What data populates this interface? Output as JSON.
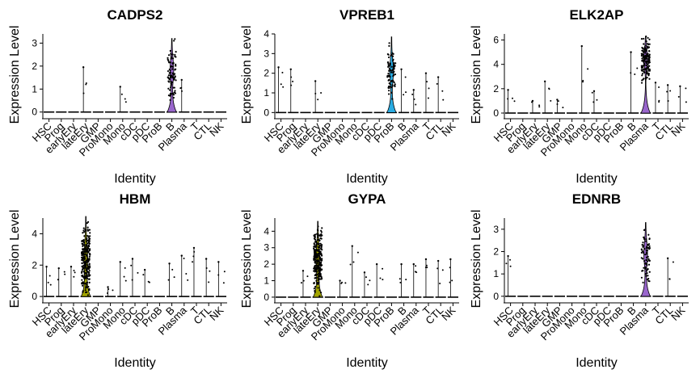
{
  "chart_data": [
    {
      "type": "violin",
      "title": "CADPS2",
      "xlabel": "Identity",
      "ylabel": "Expression Level",
      "ylim": [
        -0.15,
        3.4
      ],
      "yticks": [
        0,
        1,
        2,
        3
      ],
      "categories": [
        "HSC",
        "Prog",
        "earlyEry",
        "lateEry",
        "GMP",
        "ProMono",
        "Mono",
        "cDC",
        "pDC",
        "ProB",
        "B",
        "Plasma",
        "T",
        "CTL",
        "NK"
      ],
      "highlight": {
        "category": "B",
        "color": "#9966cc",
        "min": 0,
        "max": 3.2,
        "points": 90,
        "center": 1.8,
        "spread": 0.55
      },
      "outliers": [
        {
          "category": "lateEry",
          "value": 1.95
        },
        {
          "category": "Mono",
          "value": 1.1
        },
        {
          "category": "Plasma",
          "value": 1.4
        }
      ]
    },
    {
      "type": "violin",
      "title": "VPREB1",
      "xlabel": "Identity",
      "ylabel": "Expression Level",
      "ylim": [
        -0.15,
        4.0
      ],
      "yticks": [
        0,
        1,
        2,
        3,
        4
      ],
      "categories": [
        "HSC",
        "Prog",
        "earlyEry",
        "lateEry",
        "GMP",
        "ProMono",
        "Mono",
        "cDC",
        "pDC",
        "ProB",
        "B",
        "Plasma",
        "T",
        "CTL",
        "NK"
      ],
      "highlight": {
        "category": "ProB",
        "color": "#29abe2",
        "min": 0,
        "max": 3.85,
        "points": 80,
        "center": 2.1,
        "spread": 0.6
      },
      "outliers": [
        {
          "category": "HSC",
          "value": 2.3
        },
        {
          "category": "Prog",
          "value": 2.2
        },
        {
          "category": "lateEry",
          "value": 1.6
        },
        {
          "category": "B",
          "value": 2.2
        },
        {
          "category": "Plasma",
          "value": 1.15
        },
        {
          "category": "T",
          "value": 2.0
        },
        {
          "category": "CTL",
          "value": 1.8
        }
      ]
    },
    {
      "type": "violin",
      "title": "ELK2AP",
      "xlabel": "Identity",
      "ylabel": "Expression Level",
      "ylim": [
        -0.2,
        6.5
      ],
      "yticks": [
        0,
        2,
        4,
        6
      ],
      "categories": [
        "HSC",
        "Prog",
        "earlyEry",
        "lateEry",
        "GMP",
        "ProMono",
        "Mono",
        "cDC",
        "pDC",
        "ProB",
        "B",
        "Plasma",
        "T",
        "CTL",
        "NK"
      ],
      "highlight": {
        "category": "Plasma",
        "color": "#9966cc",
        "min": 0,
        "max": 6.3,
        "points": 150,
        "center": 4.5,
        "spread": 0.8
      },
      "outliers": [
        {
          "category": "HSC",
          "value": 1.9
        },
        {
          "category": "earlyEry",
          "value": 1.0
        },
        {
          "category": "lateEry",
          "value": 2.6
        },
        {
          "category": "GMP",
          "value": 1.1
        },
        {
          "category": "Mono",
          "value": 5.5
        },
        {
          "category": "cDC",
          "value": 1.8
        },
        {
          "category": "B",
          "value": 5.0
        },
        {
          "category": "T",
          "value": 2.5
        },
        {
          "category": "CTL",
          "value": 2.3
        },
        {
          "category": "NK",
          "value": 2.2
        }
      ]
    },
    {
      "type": "violin",
      "title": "HBM",
      "xlabel": "Identity",
      "ylabel": "Expression Level",
      "ylim": [
        -0.2,
        5.0
      ],
      "yticks": [
        0,
        2,
        4
      ],
      "categories": [
        "HSC",
        "Prog",
        "earlyEry",
        "lateEry",
        "GMP",
        "ProMono",
        "Mono",
        "cDC",
        "pDC",
        "ProB",
        "B",
        "Plasma",
        "T",
        "CTL",
        "NK"
      ],
      "highlight": {
        "category": "lateEry",
        "color": "#a3a500",
        "min": 0,
        "max": 5.1,
        "points": 240,
        "center": 2.4,
        "spread": 1.0
      },
      "outliers": [
        {
          "category": "HSC",
          "value": 1.9
        },
        {
          "category": "Prog",
          "value": 1.8
        },
        {
          "category": "earlyEry",
          "value": 1.9
        },
        {
          "category": "ProMono",
          "value": 0.6
        },
        {
          "category": "Mono",
          "value": 2.2
        },
        {
          "category": "cDC",
          "value": 2.4
        },
        {
          "category": "pDC",
          "value": 1.7
        },
        {
          "category": "B",
          "value": 2.1
        },
        {
          "category": "Plasma",
          "value": 2.6
        },
        {
          "category": "T",
          "value": 3.1
        },
        {
          "category": "CTL",
          "value": 2.4
        },
        {
          "category": "NK",
          "value": 2.2
        }
      ]
    },
    {
      "type": "violin",
      "title": "GYPA",
      "xlabel": "Identity",
      "ylabel": "Expression Level",
      "ylim": [
        -0.15,
        4.8
      ],
      "yticks": [
        0,
        1,
        2,
        3,
        4
      ],
      "categories": [
        "HSC",
        "Prog",
        "earlyEry",
        "lateEry",
        "GMP",
        "ProMono",
        "Mono",
        "cDC",
        "pDC",
        "ProB",
        "B",
        "Plasma",
        "T",
        "CTL",
        "NK"
      ],
      "highlight": {
        "category": "lateEry",
        "color": "#a3a500",
        "min": 0,
        "max": 4.6,
        "points": 240,
        "center": 2.3,
        "spread": 0.9
      },
      "outliers": [
        {
          "category": "earlyEry",
          "value": 1.6
        },
        {
          "category": "ProMono",
          "value": 1.0
        },
        {
          "category": "Mono",
          "value": 3.1
        },
        {
          "category": "cDC",
          "value": 1.5
        },
        {
          "category": "pDC",
          "value": 2.0
        },
        {
          "category": "B",
          "value": 2.0
        },
        {
          "category": "Plasma",
          "value": 2.0
        },
        {
          "category": "T",
          "value": 2.3
        },
        {
          "category": "CTL",
          "value": 2.2
        },
        {
          "category": "NK",
          "value": 2.3
        }
      ]
    },
    {
      "type": "violin",
      "title": "EDNRB",
      "xlabel": "Identity",
      "ylabel": "Expression Level",
      "ylim": [
        -0.15,
        3.5
      ],
      "yticks": [
        0,
        1,
        2,
        3
      ],
      "categories": [
        "HSC",
        "Prog",
        "earlyEry",
        "lateEry",
        "GMP",
        "ProMono",
        "Mono",
        "cDC",
        "pDC",
        "ProB",
        "B",
        "Plasma",
        "T",
        "CTL",
        "NK"
      ],
      "highlight": {
        "category": "Plasma",
        "color": "#9966cc",
        "min": 0,
        "max": 3.3,
        "points": 70,
        "center": 1.9,
        "spread": 0.55
      },
      "outliers": [
        {
          "category": "HSC",
          "value": 1.8
        },
        {
          "category": "CTL",
          "value": 1.7
        }
      ]
    }
  ]
}
